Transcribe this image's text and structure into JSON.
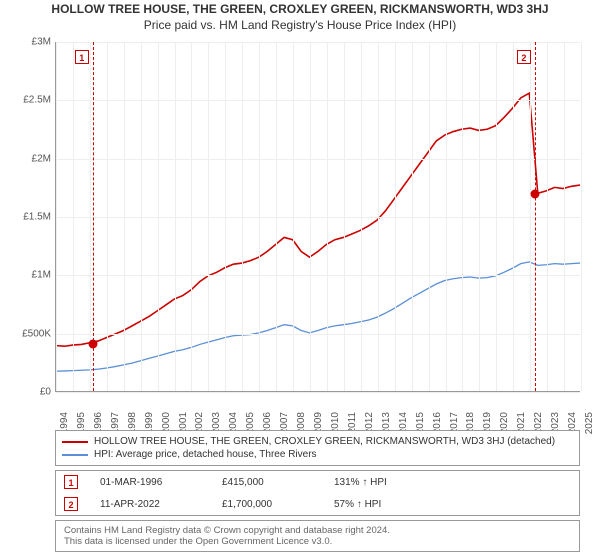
{
  "title": {
    "main": "HOLLOW TREE HOUSE, THE GREEN, CROXLEY GREEN, RICKMANSWORTH, WD3 3HJ",
    "sub": "Price paid vs. HM Land Registry's House Price Index (HPI)"
  },
  "chart": {
    "type": "line",
    "background_color": "#ffffff",
    "grid_color": "#eeeeee",
    "axis_color": "#999999",
    "ylim": [
      0,
      3000000
    ],
    "ytick_step": 500000,
    "ytick_labels": [
      "£0",
      "£500K",
      "£1M",
      "£1.5M",
      "£2M",
      "£2.5M",
      "£3M"
    ],
    "xlim": [
      1994,
      2025
    ],
    "xtick_step": 1,
    "xticks": [
      1994,
      1995,
      1996,
      1997,
      1998,
      1999,
      2000,
      2001,
      2002,
      2003,
      2004,
      2005,
      2006,
      2007,
      2008,
      2009,
      2010,
      2011,
      2012,
      2013,
      2014,
      2015,
      2016,
      2017,
      2018,
      2019,
      2020,
      2021,
      2022,
      2023,
      2024,
      2025
    ],
    "tick_fontsize": 10,
    "series": [
      {
        "name": "HOLLOW TREE HOUSE, THE GREEN, CROXLEY GREEN, RICKMANSWORTH, WD3 3HJ (detached)",
        "color": "#cc0000",
        "line_width": 1.6,
        "x": [
          1994,
          1994.5,
          1995,
          1995.5,
          1996,
          1996.5,
          1997,
          1997.5,
          1998,
          1998.5,
          1999,
          1999.5,
          2000,
          2000.5,
          2001,
          2001.5,
          2002,
          2002.5,
          2003,
          2003.5,
          2004,
          2004.5,
          2005,
          2005.5,
          2006,
          2006.5,
          2007,
          2007.5,
          2008,
          2008.5,
          2009,
          2009.5,
          2010,
          2010.5,
          2011,
          2011.5,
          2012,
          2012.5,
          2013,
          2013.5,
          2014,
          2014.5,
          2015,
          2015.5,
          2016,
          2016.5,
          2017,
          2017.5,
          2018,
          2018.5,
          2019,
          2019.5,
          2020,
          2020.5,
          2021,
          2021.5,
          2022,
          2022.5,
          2023,
          2023.5,
          2024,
          2024.5,
          2025
        ],
        "y": [
          390000,
          385000,
          395000,
          400000,
          415000,
          430000,
          460000,
          490000,
          520000,
          560000,
          600000,
          640000,
          690000,
          740000,
          790000,
          820000,
          870000,
          940000,
          990000,
          1020000,
          1060000,
          1090000,
          1100000,
          1120000,
          1150000,
          1200000,
          1260000,
          1320000,
          1300000,
          1200000,
          1150000,
          1200000,
          1260000,
          1300000,
          1320000,
          1350000,
          1380000,
          1420000,
          1470000,
          1550000,
          1650000,
          1750000,
          1850000,
          1950000,
          2050000,
          2150000,
          2200000,
          2230000,
          2250000,
          2260000,
          2240000,
          2250000,
          2280000,
          2350000,
          2430000,
          2520000,
          2560000,
          1700000,
          1720000,
          1750000,
          1740000,
          1760000,
          1770000
        ]
      },
      {
        "name": "HPI: Average price, detached house, Three Rivers",
        "color": "#5b8fd6",
        "line_width": 1.3,
        "x": [
          1994,
          1994.5,
          1995,
          1995.5,
          1996,
          1996.5,
          1997,
          1997.5,
          1998,
          1998.5,
          1999,
          1999.5,
          2000,
          2000.5,
          2001,
          2001.5,
          2002,
          2002.5,
          2003,
          2003.5,
          2004,
          2004.5,
          2005,
          2005.5,
          2006,
          2006.5,
          2007,
          2007.5,
          2008,
          2008.5,
          2009,
          2009.5,
          2010,
          2010.5,
          2011,
          2011.5,
          2012,
          2012.5,
          2013,
          2013.5,
          2014,
          2014.5,
          2015,
          2015.5,
          2016,
          2016.5,
          2017,
          2017.5,
          2018,
          2018.5,
          2019,
          2019.5,
          2020,
          2020.5,
          2021,
          2021.5,
          2022,
          2022.5,
          2023,
          2023.5,
          2024,
          2024.5,
          2025
        ],
        "y": [
          170000,
          172000,
          175000,
          178000,
          182000,
          188000,
          198000,
          210000,
          225000,
          240000,
          260000,
          280000,
          300000,
          320000,
          340000,
          355000,
          375000,
          400000,
          420000,
          440000,
          460000,
          475000,
          480000,
          485000,
          500000,
          520000,
          545000,
          570000,
          560000,
          520000,
          500000,
          520000,
          545000,
          560000,
          570000,
          580000,
          595000,
          610000,
          635000,
          670000,
          710000,
          755000,
          800000,
          840000,
          880000,
          920000,
          950000,
          965000,
          975000,
          980000,
          970000,
          975000,
          990000,
          1020000,
          1055000,
          1095000,
          1110000,
          1080000,
          1085000,
          1095000,
          1090000,
          1095000,
          1100000
        ]
      }
    ],
    "markers": [
      {
        "n": "1",
        "x": 1996.17,
        "y": 415000,
        "date": "01-MAR-1996",
        "price": "£415,000",
        "vs_hpi": "131% ↑ HPI"
      },
      {
        "n": "2",
        "x": 2022.28,
        "y": 1700000,
        "date": "11-APR-2022",
        "price": "£1,700,000",
        "vs_hpi": "57% ↑ HPI"
      }
    ],
    "marker_line_color": "#cc0000"
  },
  "legend_box_border": "#999999",
  "attribution": {
    "line1": "Contains HM Land Registry data © Crown copyright and database right 2024.",
    "line2": "This data is licensed under the Open Government Licence v3.0."
  }
}
